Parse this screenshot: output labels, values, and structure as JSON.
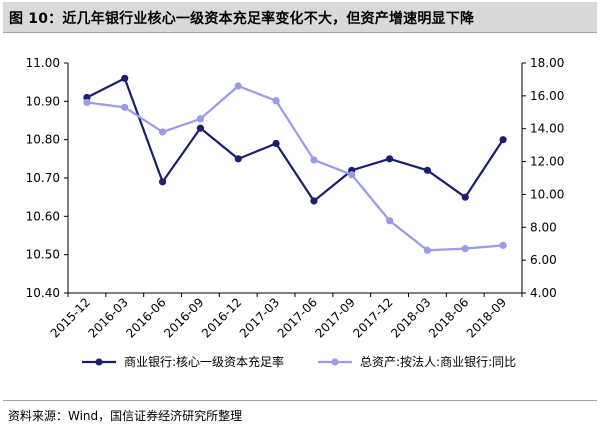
{
  "header": {
    "title": "图 10：近几年银行业核心一级资本充足率变化不大，但资产增速明显下降"
  },
  "footer": {
    "source": "资料来源：Wind，国信证券经济研究所整理"
  },
  "colors": {
    "series1": "#1b1f6e",
    "series2": "#9a9ae8",
    "title_bg": "#d9d9d9",
    "rule": "#9aa0a8"
  },
  "chart_data": {
    "type": "line",
    "categories": [
      "2015-12",
      "2016-03",
      "2016-06",
      "2016-09",
      "2016-12",
      "2017-03",
      "2017-06",
      "2017-09",
      "2017-12",
      "2018-03",
      "2018-06",
      "2018-09"
    ],
    "series": [
      {
        "name": "商业银行:核心一级资本充足率",
        "axis": "left",
        "color": "#1b1f6e",
        "values": [
          10.91,
          10.96,
          10.69,
          10.83,
          10.75,
          10.79,
          10.64,
          10.72,
          10.75,
          10.72,
          10.65,
          10.8
        ]
      },
      {
        "name": "总资产:按法人:商业银行:同比",
        "axis": "right",
        "color": "#9a9ae8",
        "values": [
          15.6,
          15.3,
          13.8,
          14.6,
          16.6,
          15.7,
          12.1,
          11.2,
          8.4,
          6.6,
          6.7,
          6.9
        ]
      }
    ],
    "y_left": {
      "ylim": [
        10.4,
        11.0
      ],
      "ticks": [
        "10.40",
        "10.50",
        "10.60",
        "10.70",
        "10.80",
        "10.90",
        "11.00"
      ]
    },
    "y_right": {
      "ylim": [
        4.0,
        18.0
      ],
      "ticks": [
        "4.00",
        "6.00",
        "8.00",
        "10.00",
        "12.00",
        "14.00",
        "16.00",
        "18.00"
      ]
    },
    "grid": false,
    "legend_position": "bottom"
  }
}
